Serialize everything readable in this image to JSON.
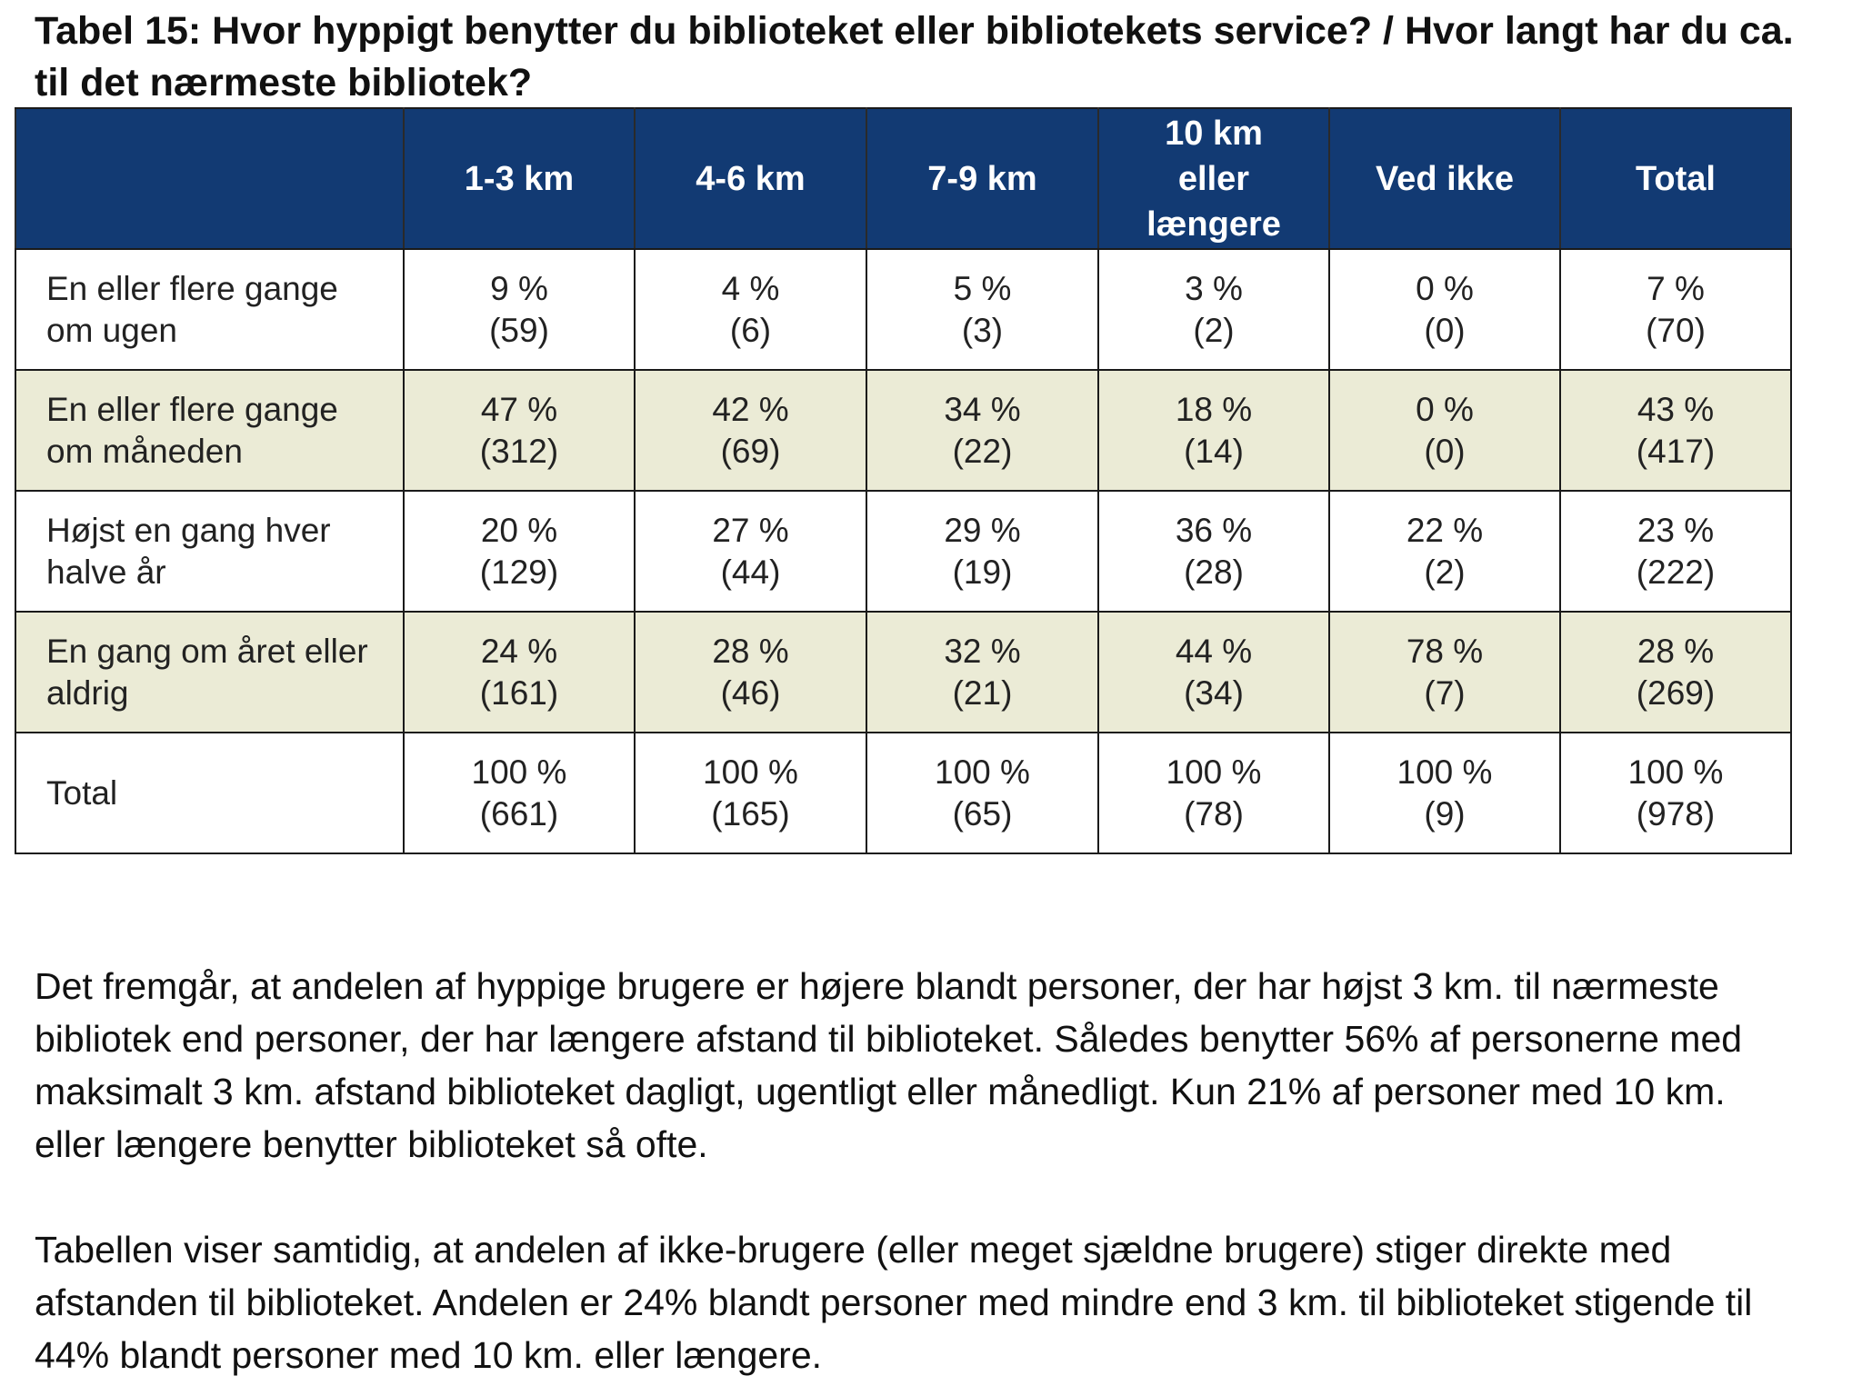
{
  "title": "Tabel 15: Hvor hyppigt benytter du biblioteket eller bibliotekets service? / Hvor langt har du ca. til det nærmeste bibliotek?",
  "table": {
    "header": {
      "corner": "",
      "columns": [
        "1-3 km",
        "4-6 km",
        "7-9 km",
        "10 km eller længere",
        "Ved ikke",
        "Total"
      ]
    },
    "rows": [
      {
        "label": "En eller flere gange om ugen",
        "cells": [
          {
            "pct": "9 %",
            "n": "(59)"
          },
          {
            "pct": "4 %",
            "n": "(6)"
          },
          {
            "pct": "5 %",
            "n": "(3)"
          },
          {
            "pct": "3 %",
            "n": "(2)"
          },
          {
            "pct": "0 %",
            "n": "(0)"
          },
          {
            "pct": "7 %",
            "n": "(70)"
          }
        ]
      },
      {
        "label": "En eller flere gange om måneden",
        "cells": [
          {
            "pct": "47 %",
            "n": "(312)"
          },
          {
            "pct": "42 %",
            "n": "(69)"
          },
          {
            "pct": "34 %",
            "n": "(22)"
          },
          {
            "pct": "18 %",
            "n": "(14)"
          },
          {
            "pct": "0 %",
            "n": "(0)"
          },
          {
            "pct": "43 %",
            "n": "(417)"
          }
        ]
      },
      {
        "label": "Højst en gang hver halve år",
        "cells": [
          {
            "pct": "20 %",
            "n": "(129)"
          },
          {
            "pct": "27 %",
            "n": "(44)"
          },
          {
            "pct": "29 %",
            "n": "(19)"
          },
          {
            "pct": "36 %",
            "n": "(28)"
          },
          {
            "pct": "22 %",
            "n": "(2)"
          },
          {
            "pct": "23 %",
            "n": "(222)"
          }
        ]
      },
      {
        "label": "En gang om året eller aldrig",
        "cells": [
          {
            "pct": "24 %",
            "n": "(161)"
          },
          {
            "pct": "28 %",
            "n": "(46)"
          },
          {
            "pct": "32 %",
            "n": "(21)"
          },
          {
            "pct": "44 %",
            "n": "(34)"
          },
          {
            "pct": "78 %",
            "n": "(7)"
          },
          {
            "pct": "28 %",
            "n": "(269)"
          }
        ]
      },
      {
        "label": "Total",
        "cells": [
          {
            "pct": "100 %",
            "n": "(661)"
          },
          {
            "pct": "100 %",
            "n": "(165)"
          },
          {
            "pct": "100 %",
            "n": "(65)"
          },
          {
            "pct": "100 %",
            "n": "(78)"
          },
          {
            "pct": "100 %",
            "n": "(9)"
          },
          {
            "pct": "100 %",
            "n": "(978)"
          }
        ]
      }
    ]
  },
  "paragraphs": [
    "Det fremgår, at andelen af hyppige brugere er højere blandt personer, der har højst 3 km. til nærmeste bibliotek end personer, der har længere afstand til biblioteket. Således benytter 56% af personerne med maksimalt 3 km. afstand biblioteket dagligt, ugentligt eller månedligt. Kun 21% af personer med 10 km. eller længere benytter biblioteket så ofte.",
    "Tabellen viser samtidig, at andelen af ikke-brugere (eller meget sjældne brugere) stiger direkte med afstanden til biblioteket. Andelen er 24% blandt personer med mindre end 3 km. til biblioteket stigende til 44% blandt personer med 10 km. eller længere."
  ],
  "colors": {
    "header_bg": "#123a73",
    "header_text": "#ffffff",
    "shaded_row_bg": "#ebebd6",
    "border": "#1a1a1a"
  }
}
